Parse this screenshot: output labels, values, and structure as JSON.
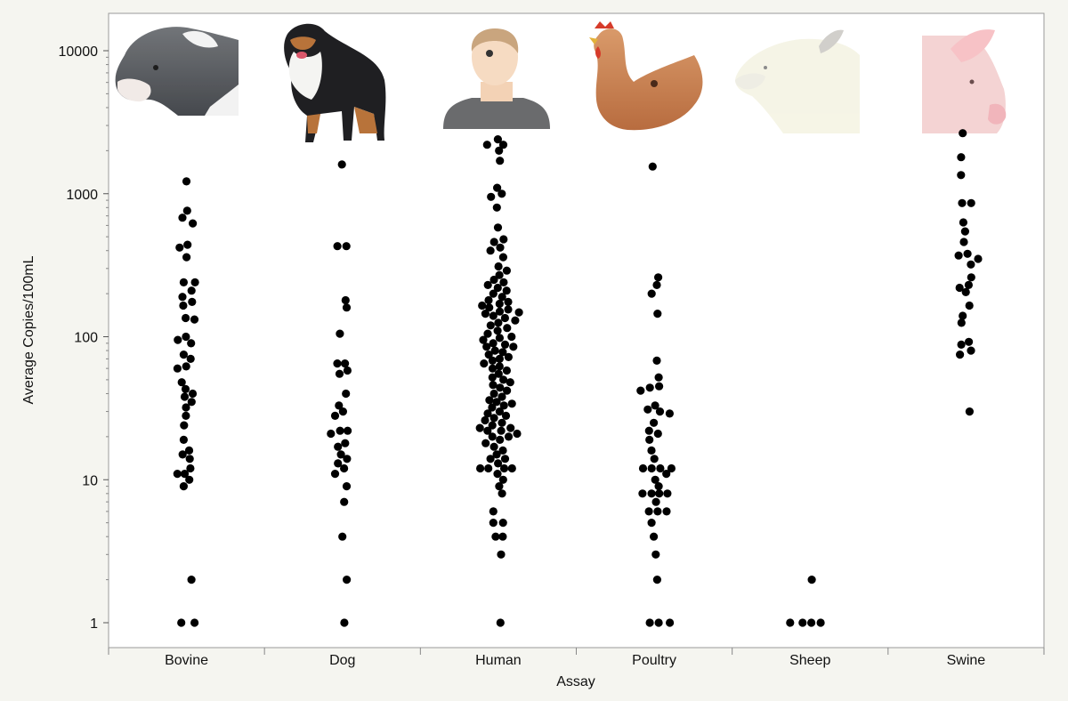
{
  "chart_data": {
    "type": "scatter",
    "title": "",
    "xlabel": "Assay",
    "ylabel": "Average Copies/100mL",
    "yscale": "log",
    "ylim": [
      0.8,
      15000
    ],
    "yticks": [
      1,
      10,
      100,
      1000,
      10000
    ],
    "ytick_labels": [
      "1",
      "10",
      "100",
      "1000",
      "10000"
    ],
    "grid": false,
    "marker_color": "#000000",
    "categories": [
      "Bovine",
      "Dog",
      "Human",
      "Poultry",
      "Sheep",
      "Swine"
    ],
    "category_icons": [
      "cow-icon",
      "dog-icon",
      "human-icon",
      "chicken-icon",
      "sheep-icon",
      "pig-icon"
    ],
    "series": [
      {
        "category": "Bovine",
        "values": [
          1220,
          760,
          680,
          620,
          440,
          420,
          360,
          240,
          240,
          210,
          190,
          175,
          165,
          135,
          132,
          100,
          95,
          90,
          75,
          70,
          62,
          60,
          48,
          43,
          40,
          38,
          35,
          32,
          28,
          24,
          19,
          16,
          15,
          14,
          12,
          11,
          11,
          10,
          9,
          2,
          1,
          1
        ]
      },
      {
        "category": "Dog",
        "values": [
          1600,
          430,
          430,
          180,
          160,
          105,
          65,
          65,
          58,
          55,
          40,
          33,
          30,
          28,
          22,
          22,
          21,
          18,
          17,
          15,
          14,
          13,
          12,
          11,
          9,
          7,
          4,
          2,
          1
        ]
      },
      {
        "category": "Human",
        "values": [
          2400,
          2200,
          2200,
          2000,
          1700,
          1100,
          1000,
          950,
          800,
          580,
          480,
          460,
          420,
          400,
          360,
          310,
          290,
          270,
          250,
          240,
          230,
          220,
          210,
          200,
          190,
          180,
          175,
          170,
          165,
          160,
          155,
          150,
          148,
          145,
          140,
          135,
          130,
          125,
          120,
          115,
          110,
          105,
          100,
          98,
          95,
          90,
          88,
          85,
          85,
          80,
          78,
          75,
          72,
          70,
          68,
          65,
          62,
          60,
          58,
          55,
          52,
          50,
          48,
          46,
          44,
          42,
          40,
          38,
          36,
          35,
          34,
          33,
          32,
          30,
          29,
          28,
          27,
          26,
          25,
          24,
          23,
          23,
          22,
          22,
          21,
          20,
          20,
          19,
          18,
          17,
          16,
          15,
          14,
          14,
          13,
          12,
          12,
          12,
          12,
          11,
          10,
          9,
          8,
          6,
          5,
          5,
          4,
          4,
          3,
          1
        ]
      },
      {
        "category": "Poultry",
        "values": [
          1550,
          260,
          230,
          200,
          145,
          68,
          52,
          45,
          44,
          42,
          33,
          31,
          30,
          29,
          25,
          22,
          21,
          19,
          16,
          14,
          12,
          12,
          12,
          12,
          11,
          10,
          9,
          8,
          8,
          8,
          8,
          7,
          6,
          6,
          6,
          5,
          4,
          3,
          2,
          1,
          1,
          1
        ]
      },
      {
        "category": "Sheep",
        "values": [
          2,
          1,
          1,
          1,
          1
        ]
      },
      {
        "category": "Swine",
        "values": [
          2650,
          1800,
          1350,
          860,
          860,
          630,
          545,
          460,
          380,
          370,
          350,
          320,
          260,
          230,
          220,
          205,
          165,
          140,
          125,
          92,
          88,
          80,
          75,
          30
        ]
      }
    ]
  }
}
